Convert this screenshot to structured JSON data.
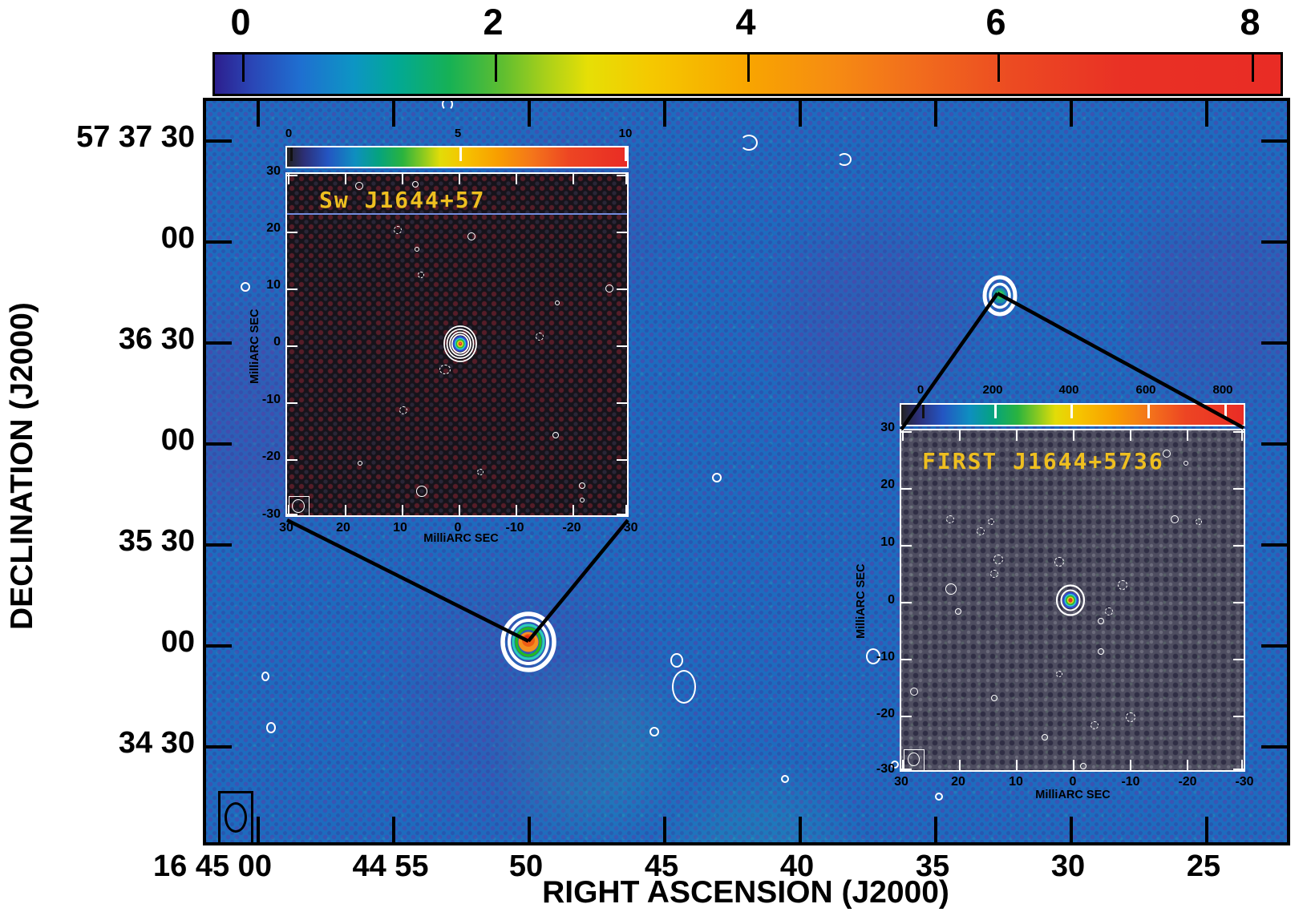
{
  "main_colorbar": {
    "tick_labels": [
      "0",
      "2",
      "4",
      "6",
      "8"
    ]
  },
  "main_axes": {
    "xlabel": "RIGHT ASCENSION (J2000)",
    "ylabel": "DECLINATION (J2000)",
    "x_tick_labels": [
      "16 45 00",
      "44 55",
      "50",
      "45",
      "40",
      "35",
      "30",
      "25"
    ],
    "y_tick_labels": [
      "57 37 30",
      "00",
      "36 30",
      "00",
      "35 30",
      "00",
      "34 30"
    ]
  },
  "insets": {
    "vlbi": {
      "title": "Sw J1644+57",
      "colorbar_tick_labels": [
        "0",
        "5",
        "10"
      ],
      "x_tick_labels": [
        "30",
        "20",
        "10",
        "0",
        "-10",
        "-20",
        "-30"
      ],
      "y_tick_labels": [
        "30",
        "20",
        "10",
        "0",
        "-10",
        "-20",
        "-30"
      ],
      "xlabel": "MilliARC SEC",
      "ylabel": "MilliARC SEC"
    },
    "first": {
      "title": "FIRST J1644+5736",
      "colorbar_tick_labels": [
        "0",
        "200",
        "400",
        "600",
        "800"
      ],
      "x_tick_labels": [
        "30",
        "20",
        "10",
        "0",
        "-10",
        "-20",
        "-30"
      ],
      "y_tick_labels": [
        "30",
        "20",
        "10",
        "0",
        "-10",
        "-20",
        "-30"
      ],
      "xlabel": "MilliARC SEC",
      "ylabel": "MilliARC SEC"
    }
  },
  "chart_data": {
    "type": "heatmap",
    "title": "",
    "xlabel": "RIGHT ASCENSION (J2000)",
    "ylabel": "DECLINATION (J2000)",
    "x_tick_labels": [
      "16 45 00",
      "44 55",
      "50",
      "45",
      "40",
      "35",
      "30",
      "25"
    ],
    "y_tick_labels": [
      "57 37 30",
      "00",
      "36 30",
      "00",
      "35 30",
      "00",
      "34 30"
    ],
    "colorbar_ticks": [
      0,
      2,
      4,
      6,
      8
    ],
    "legend_position": "top colorbar",
    "grid": false,
    "sources": [
      {
        "label": "Sw J1644+57",
        "ra_approx": "16 44 50.0",
        "dec_approx": "57 35 00",
        "appearance": "orange-red core with green and double white contour rings"
      },
      {
        "label": "FIRST J1644+5736",
        "ra_approx": "16 44 32.5",
        "dec_approx": "57 36 45",
        "appearance": "green core with double white contour rings"
      }
    ],
    "insets": [
      {
        "title": "Sw J1644+57",
        "colorbar_ticks": [
          0,
          5,
          10
        ],
        "x_range_mas": [
          30,
          -30
        ],
        "y_range_mas": [
          -30,
          30
        ],
        "source_position_mas": [
          0,
          0
        ],
        "axis_units": "MilliARC SEC"
      },
      {
        "title": "FIRST J1644+5736",
        "colorbar_ticks": [
          0,
          200,
          400,
          600,
          800
        ],
        "x_range_mas": [
          30,
          -30
        ],
        "y_range_mas": [
          -30,
          30
        ],
        "source_position_mas": [
          1,
          1
        ],
        "axis_units": "MilliARC SEC"
      }
    ]
  },
  "colors": {
    "field_blue": "#1d6cbe",
    "inset_vlbi_bg": "#16131a",
    "inset_first_bg": "#4e4d60",
    "title_yellow": "#eebf20",
    "contour_white": "#ffffff",
    "colorbar_start": "#2c1f8e",
    "colorbar_end": "#e92c25"
  }
}
